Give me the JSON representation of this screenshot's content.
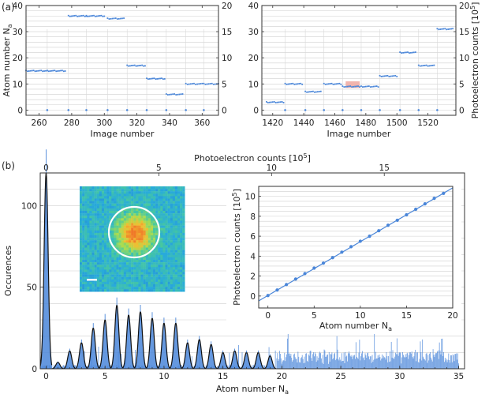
{
  "panel_labels": {
    "a": "(a)",
    "b": "(b)"
  },
  "chart_data": [
    {
      "id": "a-left",
      "type": "scatter",
      "xlabel": "Image number",
      "ylabel": "Atom number N_a",
      "ylabel_parts": {
        "main": "Atom number N",
        "sub": "a"
      },
      "xlim": [
        252,
        370
      ],
      "ylim": [
        -2,
        40
      ],
      "xticks": [
        260,
        280,
        300,
        320,
        340,
        360
      ],
      "yticks": [
        0,
        10,
        20,
        30,
        40
      ],
      "y2ticks": [
        0,
        5,
        10,
        15,
        20
      ],
      "y2lim": [
        -1,
        20
      ],
      "segments": [
        {
          "x0": 252,
          "x1": 265,
          "y": 15
        },
        {
          "x0": 265,
          "x1": 276,
          "y": 15
        },
        {
          "x0": 278,
          "x1": 289,
          "y": 36
        },
        {
          "x0": 289,
          "x1": 300,
          "y": 36
        },
        {
          "x0": 302,
          "x1": 312,
          "y": 35
        },
        {
          "x0": 314,
          "x1": 325,
          "y": 17
        },
        {
          "x0": 326,
          "x1": 337,
          "y": 12
        },
        {
          "x0": 338,
          "x1": 348,
          "y": 6
        },
        {
          "x0": 350,
          "x1": 360,
          "y": 10
        },
        {
          "x0": 361,
          "x1": 370,
          "y": 10
        }
      ],
      "markers_x": [
        265,
        278,
        289,
        302,
        314,
        326,
        338,
        350,
        361
      ]
    },
    {
      "id": "a-right",
      "type": "scatter",
      "xlabel": "Image number",
      "y2label": "Photoelectron counts [10^5]",
      "y2label_parts": {
        "main": "Photoelectron counts [10",
        "sup": "5",
        "end": "]"
      },
      "xlim": [
        1413,
        1538
      ],
      "ylim": [
        -2,
        40
      ],
      "xticks": [
        1420,
        1440,
        1460,
        1480,
        1500,
        1520
      ],
      "yticks": [
        0,
        10,
        20,
        30,
        40
      ],
      "y2ticks": [
        0,
        5,
        10,
        15,
        20
      ],
      "y2lim": [
        -1,
        20
      ],
      "segments": [
        {
          "x0": 1416,
          "x1": 1427,
          "y": 3
        },
        {
          "x0": 1428,
          "x1": 1439,
          "y": 10
        },
        {
          "x0": 1441,
          "x1": 1451,
          "y": 7
        },
        {
          "x0": 1453,
          "x1": 1464,
          "y": 10
        },
        {
          "x0": 1465,
          "x1": 1476,
          "y": 9
        },
        {
          "x0": 1477,
          "x1": 1488,
          "y": 9
        },
        {
          "x0": 1489,
          "x1": 1500,
          "y": 13
        },
        {
          "x0": 1502,
          "x1": 1512,
          "y": 22
        },
        {
          "x0": 1514,
          "x1": 1524,
          "y": 17
        },
        {
          "x0": 1526,
          "x1": 1536,
          "y": 31
        }
      ],
      "markers_x": [
        1428,
        1441,
        1453,
        1465,
        1477,
        1489,
        1502,
        1514,
        1526
      ],
      "highlight": {
        "x0": 1467,
        "x1": 1476,
        "y0": 8.5,
        "y1": 11
      }
    },
    {
      "id": "b-main",
      "type": "bar",
      "title_top": "Photoelectron counts [10^5]",
      "title_top_parts": {
        "main": "Photoelectron counts [10",
        "sup": "5",
        "end": "]"
      },
      "xlabel": "Atom number N_a",
      "xlabel_parts": {
        "main": "Atom number N",
        "sub": "a"
      },
      "ylabel": "Occurences",
      "xlim": [
        -0.5,
        35.5
      ],
      "ylim": [
        0,
        120
      ],
      "xticks": [
        0,
        5,
        10,
        15,
        20,
        25,
        30,
        35
      ],
      "yticks": [
        0,
        50,
        100
      ],
      "top_ticks": [
        0,
        5,
        10,
        15
      ],
      "top_lim": [
        0,
        18.3
      ],
      "peaks": [
        {
          "n": 0,
          "count": 120
        },
        {
          "n": 1,
          "count": 4
        },
        {
          "n": 2,
          "count": 11
        },
        {
          "n": 3,
          "count": 16
        },
        {
          "n": 4,
          "count": 25
        },
        {
          "n": 5,
          "count": 30
        },
        {
          "n": 6,
          "count": 39
        },
        {
          "n": 7,
          "count": 33
        },
        {
          "n": 8,
          "count": 35
        },
        {
          "n": 9,
          "count": 31
        },
        {
          "n": 10,
          "count": 28
        },
        {
          "n": 11,
          "count": 28
        },
        {
          "n": 12,
          "count": 16
        },
        {
          "n": 13,
          "count": 18
        },
        {
          "n": 14,
          "count": 15
        },
        {
          "n": 15,
          "count": 10
        },
        {
          "n": 16,
          "count": 11
        },
        {
          "n": 17,
          "count": 10
        },
        {
          "n": 18,
          "count": 10
        },
        {
          "n": 19,
          "count": 8
        }
      ],
      "noise_until": 35,
      "noise_level": 7
    },
    {
      "id": "b-inset",
      "type": "line",
      "xlabel": "Atom number N_a",
      "xlabel_parts": {
        "main": "Atom number N",
        "sub": "a"
      },
      "ylabel": "Photoelectron counts [10^5]",
      "ylabel_parts": {
        "main": "Photoelectron counts [10",
        "sup": "5",
        "end": "]"
      },
      "xlim": [
        -1,
        20
      ],
      "ylim": [
        -1.2,
        11
      ],
      "xticks": [
        0,
        5,
        10,
        15,
        20
      ],
      "yticks": [
        0,
        2,
        4,
        6,
        8,
        10
      ],
      "x": [
        0,
        1,
        2,
        3,
        4,
        5,
        6,
        7,
        8,
        9,
        10,
        11,
        12,
        13,
        14,
        15,
        16,
        17,
        18,
        19
      ],
      "y": [
        0.05,
        0.6,
        1.15,
        1.7,
        2.25,
        2.8,
        3.3,
        3.85,
        4.4,
        4.95,
        5.5,
        6.0,
        6.55,
        7.1,
        7.6,
        8.15,
        8.7,
        9.25,
        9.8,
        10.3
      ],
      "fit": {
        "slope": 0.54,
        "intercept": 0.05
      }
    }
  ]
}
